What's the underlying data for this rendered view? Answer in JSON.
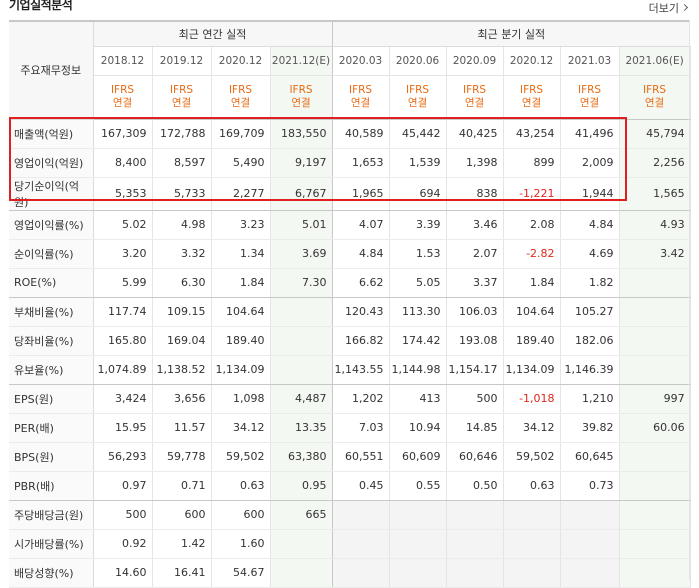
{
  "page": {
    "title": "기업실적분석",
    "more_label": "더보기"
  },
  "colors": {
    "accent_orange": "#e86a12",
    "negative_red": "#e0271b",
    "highlight_box": "#e02020",
    "estimate_bg": "#f4f8f2"
  },
  "table": {
    "row_header_label": "주요재무정보",
    "annual_group_label": "최근 연간 실적",
    "quarter_group_label": "최근 분기 실적",
    "periods": [
      "2018.12",
      "2019.12",
      "2020.12",
      "2021.12(E)",
      "2020.03",
      "2020.06",
      "2020.09",
      "2020.12",
      "2021.03",
      "2021.06(E)"
    ],
    "basis": [
      "IFRS\n연결",
      "IFRS\n연결",
      "IFRS\n연결",
      "IFRS\n연결",
      "IFRS\n연결",
      "IFRS\n연결",
      "IFRS\n연결",
      "IFRS\n연결",
      "IFRS\n연결",
      "IFRS\n연결"
    ],
    "rows": [
      {
        "label": "매출액(억원)",
        "values": [
          "167,309",
          "172,788",
          "169,709",
          "183,550",
          "40,589",
          "45,442",
          "40,425",
          "43,254",
          "41,496",
          "45,794"
        ]
      },
      {
        "label": "영업이익(억원)",
        "values": [
          "8,400",
          "8,597",
          "5,490",
          "9,197",
          "1,653",
          "1,539",
          "1,398",
          "899",
          "2,009",
          "2,256"
        ]
      },
      {
        "label": "당기순이익(억원)",
        "values": [
          "5,353",
          "5,733",
          "2,277",
          "6,767",
          "1,965",
          "694",
          "838",
          "-1,221",
          "1,944",
          "1,565"
        ]
      },
      {
        "label": "영업이익률(%)",
        "values": [
          "5.02",
          "4.98",
          "3.23",
          "5.01",
          "4.07",
          "3.39",
          "3.46",
          "2.08",
          "4.84",
          "4.93"
        ]
      },
      {
        "label": "순이익률(%)",
        "values": [
          "3.20",
          "3.32",
          "1.34",
          "3.69",
          "4.84",
          "1.53",
          "2.07",
          "-2.82",
          "4.69",
          "3.42"
        ]
      },
      {
        "label": "ROE(%)",
        "values": [
          "5.99",
          "6.30",
          "1.84",
          "7.30",
          "6.62",
          "5.05",
          "3.37",
          "1.84",
          "1.82",
          ""
        ]
      },
      {
        "label": "부채비율(%)",
        "values": [
          "117.74",
          "109.15",
          "104.64",
          "",
          "120.43",
          "113.30",
          "106.03",
          "104.64",
          "105.27",
          ""
        ]
      },
      {
        "label": "당좌비율(%)",
        "values": [
          "165.80",
          "169.04",
          "189.40",
          "",
          "166.82",
          "174.42",
          "193.08",
          "189.40",
          "182.06",
          ""
        ]
      },
      {
        "label": "유보율(%)",
        "values": [
          "1,074.89",
          "1,138.52",
          "1,134.09",
          "",
          "1,143.55",
          "1,144.98",
          "1,154.17",
          "1,134.09",
          "1,146.39",
          ""
        ]
      },
      {
        "label": "EPS(원)",
        "values": [
          "3,424",
          "3,656",
          "1,098",
          "4,487",
          "1,202",
          "413",
          "500",
          "-1,018",
          "1,210",
          "997"
        ]
      },
      {
        "label": "PER(배)",
        "values": [
          "15.95",
          "11.57",
          "34.12",
          "13.35",
          "7.03",
          "10.94",
          "14.85",
          "34.12",
          "39.82",
          "60.06"
        ]
      },
      {
        "label": "BPS(원)",
        "values": [
          "56,293",
          "59,778",
          "59,502",
          "63,380",
          "60,551",
          "60,609",
          "60,646",
          "59,502",
          "60,645",
          ""
        ]
      },
      {
        "label": "PBR(배)",
        "values": [
          "0.97",
          "0.71",
          "0.63",
          "0.95",
          "0.45",
          "0.55",
          "0.50",
          "0.63",
          "0.73",
          ""
        ]
      },
      {
        "label": "주당배당금(원)",
        "values": [
          "500",
          "600",
          "600",
          "665",
          "",
          "",
          "",
          "",
          "",
          ""
        ]
      },
      {
        "label": "시가배당률(%)",
        "values": [
          "0.92",
          "1.42",
          "1.60",
          "",
          "",
          "",
          "",
          "",
          "",
          ""
        ]
      },
      {
        "label": "배당성향(%)",
        "values": [
          "14.60",
          "16.41",
          "54.67",
          "",
          "",
          "",
          "",
          "",
          "",
          ""
        ]
      }
    ]
  }
}
